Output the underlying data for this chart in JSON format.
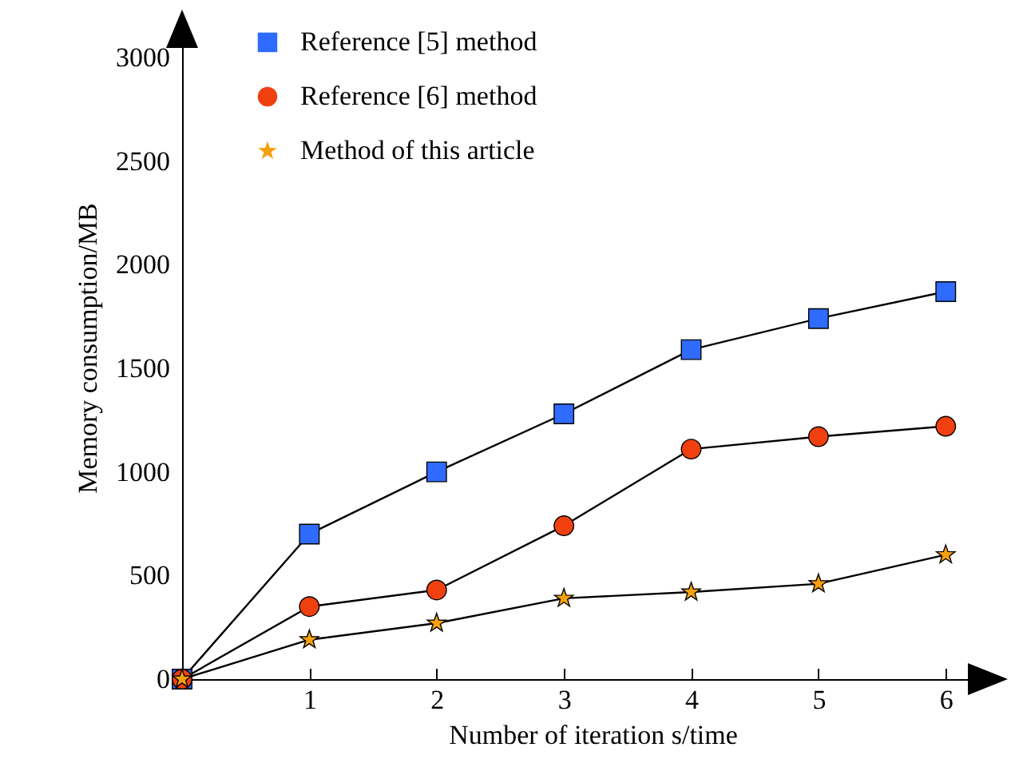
{
  "chart_data": {
    "type": "line",
    "xlabel": "Number of iteration s/time",
    "ylabel": "Memory consumption/MB",
    "x": [
      0,
      1,
      2,
      3,
      4,
      5,
      6
    ],
    "series": [
      {
        "name": "Reference [5] method",
        "color": "#2f6bff",
        "marker": "square",
        "values": [
          0,
          700,
          1000,
          1280,
          1590,
          1740,
          1870
        ]
      },
      {
        "name": "Reference [6] method",
        "color": "#f04010",
        "marker": "circle",
        "values": [
          0,
          350,
          430,
          740,
          1110,
          1170,
          1220
        ]
      },
      {
        "name": "Method of this article",
        "color": "#f5a00f",
        "marker": "star",
        "values": [
          0,
          190,
          270,
          390,
          420,
          460,
          600
        ]
      }
    ],
    "xlim": [
      0,
      6.45
    ],
    "xticks": [
      1,
      2,
      3,
      4,
      5,
      6
    ],
    "ylim": [
      0,
      3200
    ],
    "yticks": [
      0,
      500,
      1000,
      1500,
      2000,
      2500,
      3000
    ],
    "grid": false,
    "legend": "top left"
  }
}
